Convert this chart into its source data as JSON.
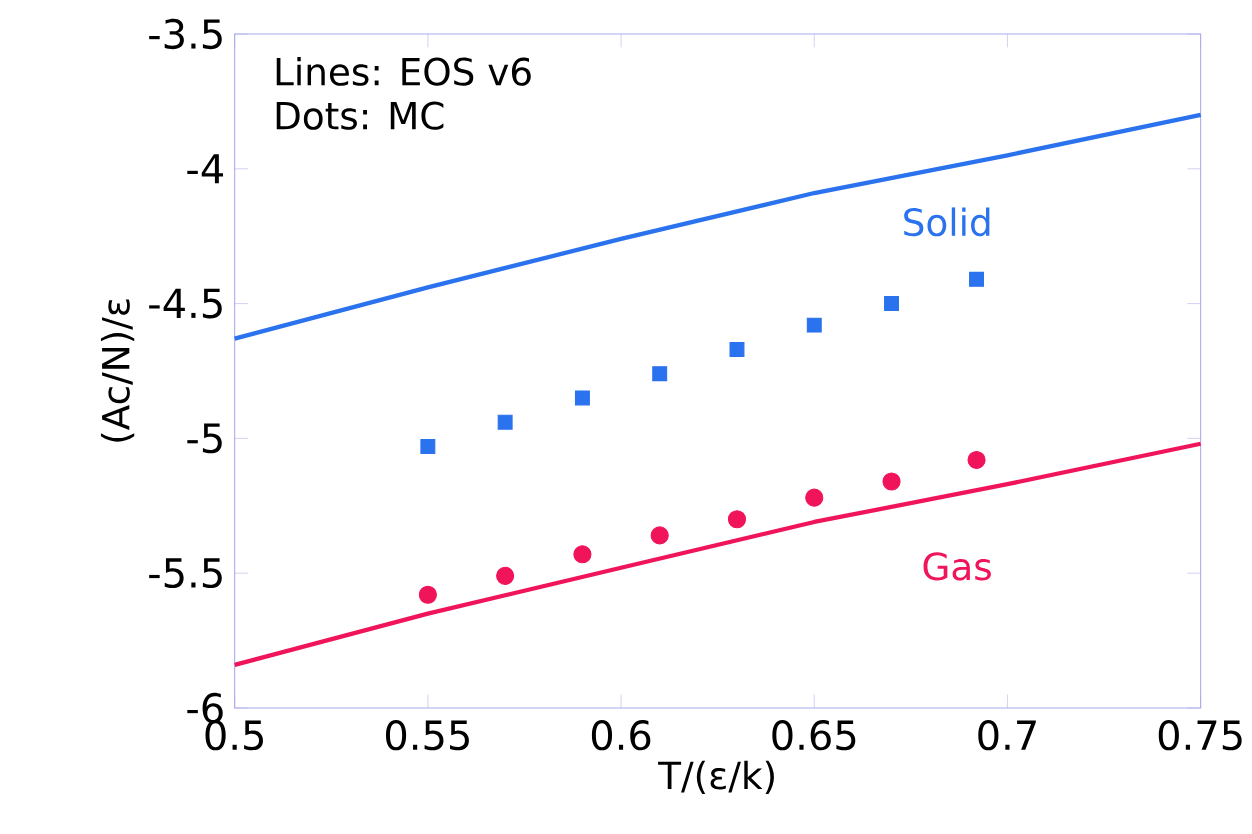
{
  "chart_data": {
    "type": "line",
    "xlabel": "T/(ε/k)",
    "ylabel": "(Ac/N)/ε",
    "annotations": [
      "Lines: EOS v6",
      "Dots: MC"
    ],
    "xlim": [
      0.5,
      0.75
    ],
    "ylim": [
      -6,
      -3.5
    ],
    "xticks": [
      0.5,
      0.55,
      0.6,
      0.65,
      0.7,
      0.75
    ],
    "yticks": [
      -3.5,
      -4,
      -4.5,
      -5,
      -5.5,
      -6
    ],
    "grid": false,
    "legend": false,
    "series": [
      {
        "name": "Solid",
        "type": "line",
        "color": "#2a72ee",
        "x": [
          0.5,
          0.55,
          0.6,
          0.65,
          0.7,
          0.75
        ],
        "values": [
          -4.63,
          -4.44,
          -4.26,
          -4.09,
          -3.95,
          -3.8
        ]
      },
      {
        "name": "Gas",
        "type": "line",
        "color": "#f0145a",
        "x": [
          0.5,
          0.55,
          0.6,
          0.65,
          0.7,
          0.75
        ],
        "values": [
          -5.84,
          -5.65,
          -5.48,
          -5.31,
          -5.17,
          -5.02
        ]
      },
      {
        "type": "scatter",
        "marker": "square",
        "color": "#2a72ee",
        "x": [
          0.55,
          0.57,
          0.59,
          0.61,
          0.63,
          0.65,
          0.67,
          0.692
        ],
        "values": [
          -5.03,
          -4.94,
          -4.85,
          -4.76,
          -4.67,
          -4.58,
          -4.5,
          -4.41
        ]
      },
      {
        "type": "scatter",
        "marker": "circle",
        "color": "#f0145a",
        "x": [
          0.55,
          0.57,
          0.59,
          0.61,
          0.63,
          0.65,
          0.67,
          0.692
        ],
        "values": [
          -5.58,
          -5.51,
          -5.43,
          -5.36,
          -5.3,
          -5.22,
          -5.16,
          -5.08
        ]
      }
    ]
  }
}
